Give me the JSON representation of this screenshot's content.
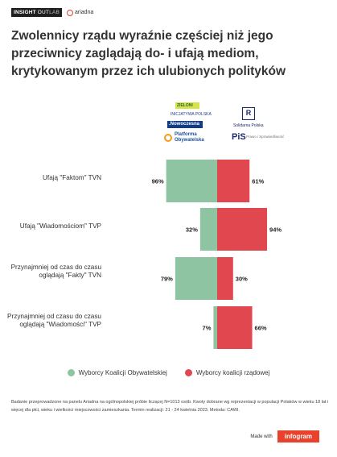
{
  "brand": {
    "insight": "INSIGHT",
    "out": "OUT",
    "lab": "LAB",
    "aria": "ariadna"
  },
  "title": "Zwolennicy rządu wyraźnie częściej niż jego przeciwnicy zaglądają do- i ufają mediom, krytykowanym przez ich ulubionych polityków",
  "logos": {
    "zielo": "ZIELONI",
    "inic": "INICJATYWA POLSKA",
    "nowo": ".Nowoczesna",
    "po_line1": "Platforma",
    "po_line2": "Obywatelska",
    "rp": "R",
    "sp": "Solidarna Polska",
    "pis": "PiS",
    "pis_sub": "Prawo i Sprawiedliwość"
  },
  "colors": {
    "opposition": "#8fc4a3",
    "government": "#e0474f"
  },
  "chart_data": {
    "type": "bar",
    "orientation": "diverging-horizontal",
    "categories": [
      "Ufają \"Faktom\" TVN",
      "Ufają \"Wiadomościom\" TVP",
      "Przynajmniej od czas do czasu oglądają \"Fakty\" TVN",
      "Przynajmniej od czasu do czasu oglądają \"Wiadomości\" TVP"
    ],
    "series": [
      {
        "name": "Wyborcy Koalicji Obywatelskiej",
        "values": [
          96,
          32,
          79,
          7
        ],
        "color": "#8fc4a3",
        "side": "left"
      },
      {
        "name": "Wyborcy koalicji rządowej",
        "values": [
          61,
          94,
          30,
          66
        ],
        "color": "#e0474f",
        "side": "right"
      }
    ],
    "value_suffix": "%",
    "xlim": [
      0,
      100
    ],
    "legend_position": "bottom"
  },
  "footnote": "Badanie przeprowadzone na panelu Ariadna na ogólnopolskiej próbie liczącej N=1013 osób. Kwoty dobrane wg reprezentacji w populacji Polaków w wieku 18 lat i więcej dla płci, wieku i wielkości miejscowości zamieszkania. Termin realizacji: 21 - 24 kwietnia 2023. Metoda: CAWI.",
  "made_with": "Made with",
  "infogram": "infogram"
}
